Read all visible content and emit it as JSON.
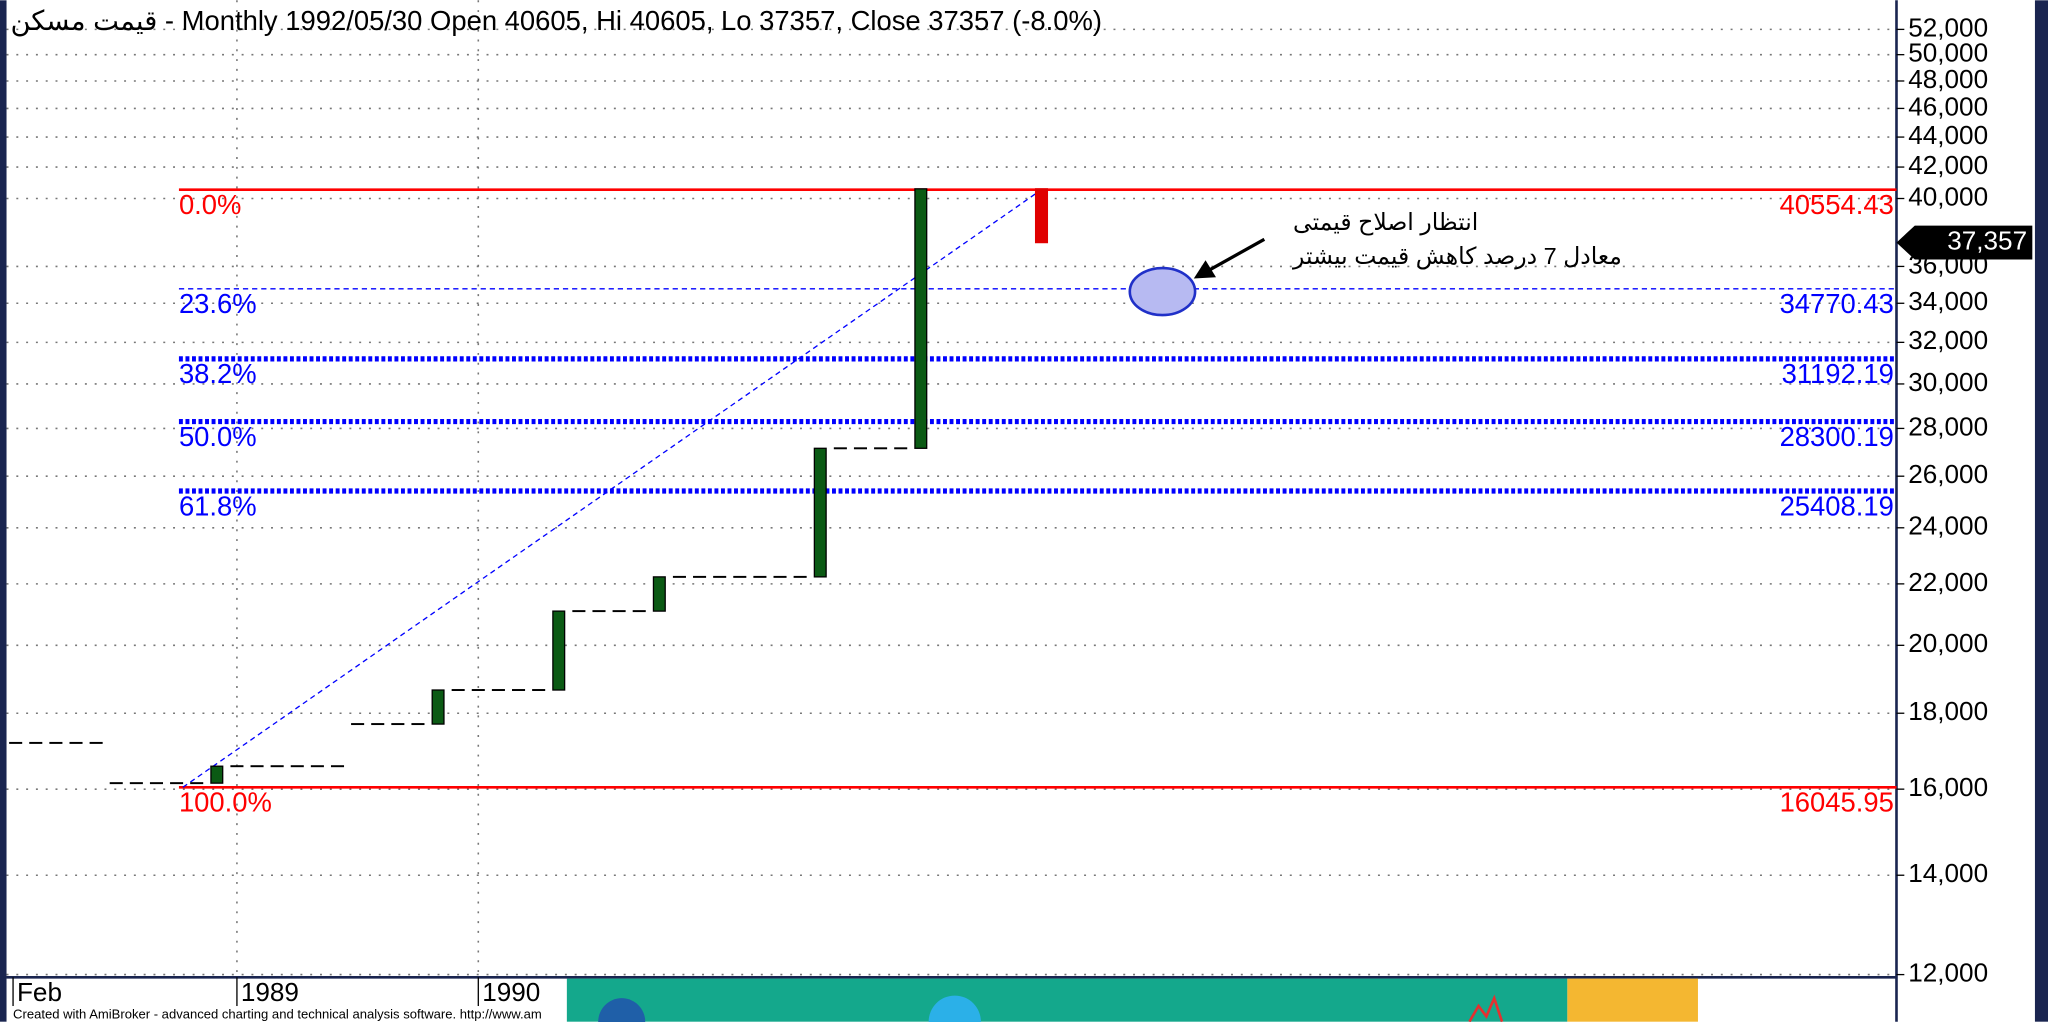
{
  "chart_data": {
    "type": "candlestick",
    "title": "قیمت مسکن - Monthly 1992/05/30 Open 40605, Hi 40605, Lo 37357, Close 37357 (-8.0%)",
    "categories": [
      "Feb",
      null,
      null,
      null,
      null,
      null,
      null,
      null,
      null,
      null,
      null,
      "1989",
      null,
      null,
      null,
      null,
      null,
      null,
      null,
      null,
      null,
      null,
      null,
      "1990",
      null,
      null,
      null,
      null,
      null,
      null,
      null,
      null,
      null,
      null,
      null,
      null,
      null,
      null,
      null,
      null,
      null,
      null,
      null,
      null,
      null,
      null,
      null,
      null,
      null,
      null,
      null,
      null
    ],
    "open": [
      17190,
      17190,
      17190,
      17190,
      17190,
      16150,
      16150,
      16150,
      16150,
      16150,
      16150,
      16580,
      16580,
      16580,
      16580,
      16580,
      16580,
      17700,
      17700,
      17700,
      17700,
      17700,
      18660,
      18660,
      18660,
      18660,
      18660,
      18660,
      21090,
      21090,
      21090,
      21090,
      21090,
      22240,
      22240,
      22240,
      22240,
      22240,
      22240,
      22240,
      22240,
      27150,
      27150,
      27150,
      27150,
      27150,
      null,
      null,
      null,
      null,
      null,
      40605
    ],
    "close": [
      17190,
      17190,
      17190,
      17190,
      17190,
      16150,
      16150,
      16150,
      16150,
      16150,
      16580,
      16580,
      16580,
      16580,
      16580,
      16580,
      16580,
      17700,
      17700,
      17700,
      17700,
      18660,
      18660,
      18660,
      18660,
      18660,
      18660,
      21090,
      21090,
      21090,
      21090,
      21090,
      22240,
      22240,
      22240,
      22240,
      22240,
      22240,
      22240,
      22240,
      27150,
      27150,
      27150,
      27150,
      27150,
      40605,
      null,
      null,
      null,
      null,
      null,
      37357
    ],
    "up_color": "#0b5a14",
    "down_color": "#e00000",
    "log_scale": true,
    "grid": true,
    "ylim": [
      11950,
      54400
    ],
    "yticks": [
      {
        "value": 12000,
        "label": "12,000"
      },
      {
        "value": 14000,
        "label": "14,000"
      },
      {
        "value": 16000,
        "label": "16,000"
      },
      {
        "value": 18000,
        "label": "18,000"
      },
      {
        "value": 20000,
        "label": "20,000"
      },
      {
        "value": 22000,
        "label": "22,000"
      },
      {
        "value": 24000,
        "label": "24,000"
      },
      {
        "value": 26000,
        "label": "26,000"
      },
      {
        "value": 28000,
        "label": "28,000"
      },
      {
        "value": 30000,
        "label": "30,000"
      },
      {
        "value": 32000,
        "label": "32,000"
      },
      {
        "value": 34000,
        "label": "34,000"
      },
      {
        "value": 36000,
        "label": "36,000"
      },
      {
        "value": 40000,
        "label": "40,000"
      },
      {
        "value": 42000,
        "label": "42,000"
      },
      {
        "value": 44000,
        "label": "44,000"
      },
      {
        "value": 46000,
        "label": "46,000"
      },
      {
        "value": 48000,
        "label": "48,000"
      },
      {
        "value": 50000,
        "label": "50,000"
      },
      {
        "value": 52000,
        "label": "52,000"
      }
    ],
    "fib_levels": [
      {
        "label": "0.0%",
        "value": 40554.43,
        "color": "#ff0000",
        "style": "solid"
      },
      {
        "label": "23.6%",
        "value": 34770.43,
        "color": "#0000ff",
        "style": "dashed"
      },
      {
        "label": "38.2%",
        "value": 31192.19,
        "color": "#0000ff",
        "style": "dotted"
      },
      {
        "label": "50.0%",
        "value": 28300.19,
        "color": "#0000ff",
        "style": "dotted"
      },
      {
        "label": "61.8%",
        "value": 25408.19,
        "color": "#0000ff",
        "style": "dotted"
      },
      {
        "label": "100.0%",
        "value": 16045.95,
        "color": "#ff0000",
        "style": "solid"
      }
    ],
    "last_price": {
      "value": 37357,
      "label": "37,357"
    },
    "annotations": [
      "انتظار اصلاح قیمتی",
      "معادل 7 درصد کاهش قیمت بیشتر"
    ],
    "footer": "Created with AmiBroker - advanced charting and technical analysis software. http://www.am"
  }
}
